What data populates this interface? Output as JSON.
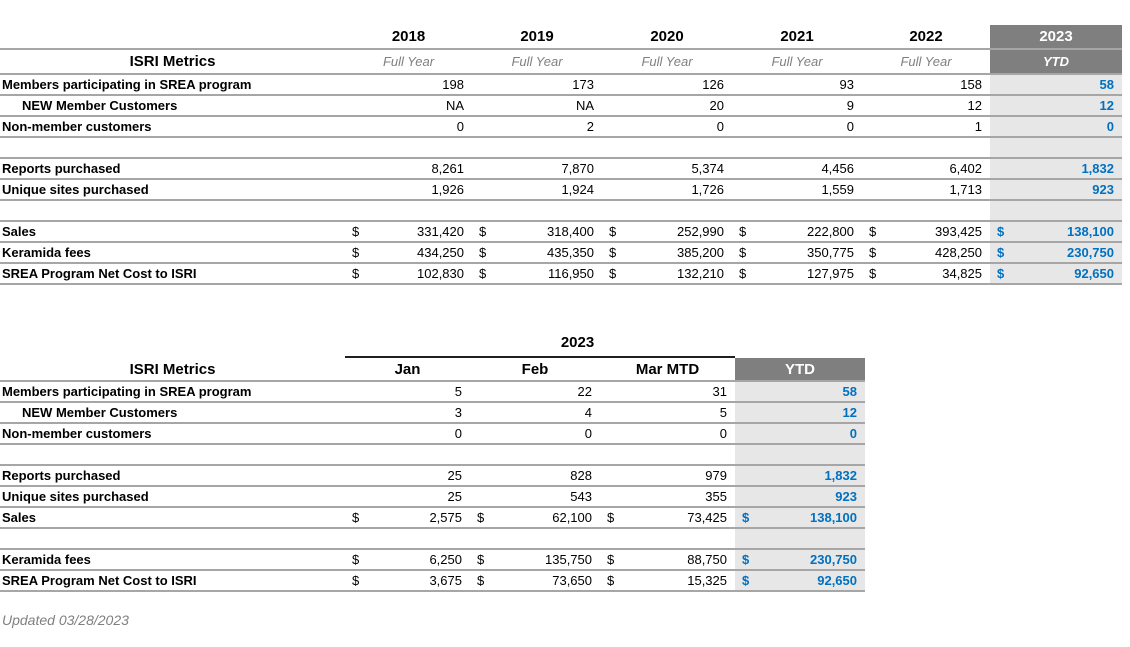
{
  "page": {
    "updated_note": "Updated 03/28/2023"
  },
  "colors": {
    "header_dark_gray": "#7F7F7F",
    "highlight_column_bg": "#E7E7E7",
    "accent_blue": "#0070C0",
    "row_border_gray": "#A6A6A6",
    "muted_text_gray": "#7F7F7F"
  },
  "table_yearly": {
    "corner_label": "ISRI Metrics",
    "columns": [
      {
        "year": "2018",
        "sub": "Full Year",
        "highlight": false
      },
      {
        "year": "2019",
        "sub": "Full Year",
        "highlight": false
      },
      {
        "year": "2020",
        "sub": "Full Year",
        "highlight": false
      },
      {
        "year": "2021",
        "sub": "Full Year",
        "highlight": false
      },
      {
        "year": "2022",
        "sub": "Full Year",
        "highlight": false
      },
      {
        "year": "2023",
        "sub": "YTD",
        "highlight": true
      }
    ],
    "rows": [
      {
        "label": "Members participating in SREA program",
        "values": [
          "198",
          "173",
          "126",
          "93",
          "158",
          "58"
        ]
      },
      {
        "label": "NEW Member Customers",
        "indent": true,
        "values": [
          "NA",
          "NA",
          "20",
          "9",
          "12",
          "12"
        ]
      },
      {
        "label": "Non-member customers",
        "values": [
          "0",
          "2",
          "0",
          "0",
          "1",
          "0"
        ]
      },
      {
        "blank": true
      },
      {
        "label": "Reports purchased",
        "values": [
          "8,261",
          "7,870",
          "5,374",
          "4,456",
          "6,402",
          "1,832"
        ]
      },
      {
        "label": "Unique sites purchased",
        "values": [
          "1,926",
          "1,924",
          "1,726",
          "1,559",
          "1,713",
          "923"
        ]
      },
      {
        "blank": true
      },
      {
        "label": "Sales",
        "currency": true,
        "values": [
          "331,420",
          "318,400",
          "252,990",
          "222,800",
          "393,425",
          "138,100"
        ]
      },
      {
        "label": "Keramida fees",
        "currency": true,
        "values": [
          "434,250",
          "435,350",
          "385,200",
          "350,775",
          "428,250",
          "230,750"
        ]
      },
      {
        "label": "SREA Program Net Cost to ISRI",
        "currency": true,
        "values": [
          "102,830",
          "116,950",
          "132,210",
          "127,975",
          "34,825",
          "92,650"
        ]
      }
    ]
  },
  "table_monthly": {
    "title": "2023",
    "corner_label": "ISRI Metrics",
    "columns": [
      {
        "label": "Jan",
        "highlight": false
      },
      {
        "label": "Feb",
        "highlight": false
      },
      {
        "label": "Mar MTD",
        "highlight": false
      },
      {
        "label": "YTD",
        "highlight": true
      }
    ],
    "rows": [
      {
        "label": "Members participating in SREA program",
        "values": [
          "5",
          "22",
          "31",
          "58"
        ]
      },
      {
        "label": "NEW Member Customers",
        "indent": true,
        "values": [
          "3",
          "4",
          "5",
          "12"
        ]
      },
      {
        "label": "Non-member customers",
        "values": [
          "0",
          "0",
          "0",
          "0"
        ]
      },
      {
        "blank": true
      },
      {
        "label": "Reports purchased",
        "values": [
          "25",
          "828",
          "979",
          "1,832"
        ]
      },
      {
        "label": "Unique sites purchased",
        "values": [
          "25",
          "543",
          "355",
          "923"
        ]
      },
      {
        "label": "Sales",
        "currency": true,
        "values": [
          "2,575",
          "62,100",
          "73,425",
          "138,100"
        ]
      },
      {
        "blank": true
      },
      {
        "label": "Keramida fees",
        "currency": true,
        "values": [
          "6,250",
          "135,750",
          "88,750",
          "230,750"
        ]
      },
      {
        "label": "SREA Program Net Cost to ISRI",
        "currency": true,
        "values": [
          "3,675",
          "73,650",
          "15,325",
          "92,650"
        ]
      }
    ]
  }
}
